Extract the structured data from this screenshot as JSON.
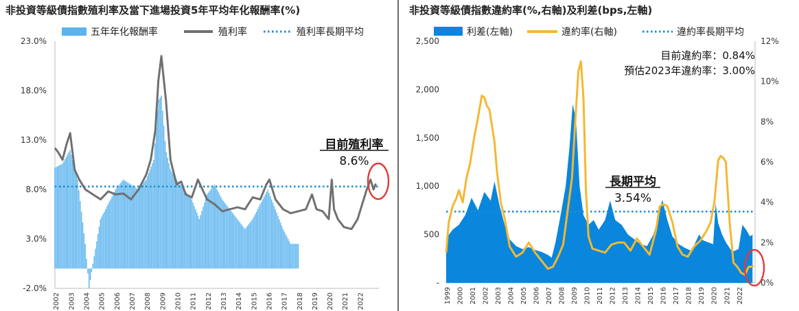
{
  "panel1": {
    "title": "非投資等級債指數殖利率及當下進場投資5年平均年化報酬率(%)",
    "legend": [
      "五年年化報酬率",
      "殖利率",
      "殖利率長期平均"
    ],
    "annotation_label": "目前殖利率",
    "annotation_value": "8.6%",
    "colors": {
      "bar": "#5bb4ee",
      "yield": "#707070",
      "avg": "#1a8fd6",
      "circle": "#e23b3b"
    }
  },
  "panel2": {
    "title": "非投資等級債指數違約率(%,右軸)及利差(bps,左軸)",
    "legend": [
      "利差(左軸)",
      "違約率(右軸)",
      "違約率長期平均"
    ],
    "note_current": "目前違約率：0.84%",
    "note_forecast": "預估2023年違約率：3.00%",
    "annotation_label": "長期平均",
    "annotation_value": "3.54%",
    "colors": {
      "spread": "#0a86dc",
      "default": "#f5b731",
      "avg": "#1a8fd6",
      "circle": "#e23b3b"
    }
  },
  "chart_data": [
    {
      "type": "bar",
      "title": "非投資等級債指數殖利率及當下進場投資5年平均年化報酬率(%)",
      "x_tick_labels": [
        "2002",
        "2003",
        "2004",
        "2005",
        "2006",
        "2007",
        "2008",
        "2009",
        "2010",
        "2011",
        "2012",
        "2013",
        "2014",
        "2015",
        "2016",
        "2017",
        "2018",
        "2019",
        "2020",
        "2021",
        "2022"
      ],
      "y_tick_labels": [
        "23.0%",
        "18.0%",
        "13.0%",
        "8.0%",
        "3.0%",
        "-2.0%"
      ],
      "ylim": [
        -2,
        23
      ],
      "series": [
        {
          "name": "五年年化報酬率",
          "type": "bar",
          "x": [
            2002.0,
            2002.5,
            2003.0,
            2003.5,
            2004.0,
            2004.25,
            2004.5,
            2005.0,
            2005.5,
            2006.0,
            2006.5,
            2007.0,
            2007.5,
            2008.0,
            2008.5,
            2008.8,
            2009.0,
            2009.3,
            2009.6,
            2010.0,
            2010.5,
            2011.0,
            2011.5,
            2012.0,
            2012.5,
            2013.0,
            2013.5,
            2014.0,
            2014.5,
            2015.0,
            2015.5,
            2016.0,
            2016.5,
            2017.0,
            2017.5,
            2018.0
          ],
          "values": [
            10.2,
            10.6,
            12.0,
            9.0,
            2.5,
            -2.0,
            0.5,
            5.0,
            6.5,
            8.0,
            9.0,
            8.5,
            8.0,
            9.0,
            11.0,
            17.0,
            17.5,
            12.0,
            10.0,
            9.0,
            8.0,
            7.0,
            5.0,
            7.5,
            8.5,
            7.0,
            6.0,
            5.0,
            4.0,
            5.0,
            6.5,
            8.0,
            6.0,
            4.0,
            2.5,
            2.5
          ]
        },
        {
          "name": "殖利率",
          "type": "line",
          "x": [
            2002.0,
            2002.2,
            2002.5,
            2002.75,
            2003.0,
            2003.3,
            2003.6,
            2004.0,
            2004.5,
            2005.0,
            2005.5,
            2006.0,
            2006.5,
            2007.0,
            2007.5,
            2008.0,
            2008.3,
            2008.6,
            2008.8,
            2009.0,
            2009.1,
            2009.3,
            2009.6,
            2010.0,
            2010.3,
            2010.6,
            2011.0,
            2011.4,
            2011.7,
            2012.0,
            2012.5,
            2013.0,
            2013.5,
            2014.0,
            2014.5,
            2015.0,
            2015.5,
            2015.9,
            2016.1,
            2016.5,
            2017.0,
            2017.5,
            2018.0,
            2018.5,
            2018.9,
            2019.2,
            2019.6,
            2020.0,
            2020.2,
            2020.35,
            2020.6,
            2021.0,
            2021.5,
            2021.9,
            2022.2,
            2022.5,
            2022.75,
            2022.95,
            2023.1
          ],
          "values": [
            12.2,
            11.8,
            11.0,
            12.5,
            13.7,
            10.0,
            9.0,
            8.0,
            7.5,
            7.0,
            7.8,
            7.5,
            7.6,
            7.0,
            8.0,
            9.5,
            11.0,
            14.0,
            19.0,
            21.5,
            20.0,
            17.0,
            11.0,
            8.5,
            8.8,
            7.5,
            7.2,
            9.0,
            8.0,
            7.0,
            6.5,
            5.8,
            6.0,
            6.2,
            6.0,
            7.2,
            7.0,
            8.5,
            9.0,
            7.0,
            6.0,
            5.6,
            5.8,
            6.0,
            7.5,
            6.0,
            5.8,
            5.0,
            9.0,
            6.0,
            5.0,
            4.2,
            4.0,
            5.0,
            6.5,
            8.0,
            9.0,
            8.0,
            8.6
          ]
        },
        {
          "name": "殖利率長期平均",
          "type": "line",
          "values": [
            8.3
          ]
        }
      ]
    },
    {
      "type": "area",
      "title": "非投資等級債指數違約率(%,右軸)及利差(bps,左軸)",
      "x_tick_labels": [
        "1999",
        "2000",
        "2001",
        "2002",
        "2003",
        "2004",
        "2005",
        "2006",
        "2007",
        "2008",
        "2009",
        "2010",
        "2011",
        "2012",
        "2013",
        "2014",
        "2015",
        "2016",
        "2017",
        "2018",
        "2019",
        "2020",
        "2021",
        "2022"
      ],
      "y_left_tick_labels": [
        "2,500",
        "2,000",
        "1,500",
        "1,000",
        "500",
        "-"
      ],
      "y_right_tick_labels": [
        "12%",
        "10%",
        "8%",
        "6%",
        "4%",
        "2%",
        "0%"
      ],
      "ylim_left": [
        0,
        2500
      ],
      "ylim_right": [
        0,
        12
      ],
      "series": [
        {
          "name": "利差(左軸)",
          "type": "area",
          "axis": "left",
          "x": [
            1999.0,
            1999.5,
            2000.0,
            2000.5,
            2001.0,
            2001.5,
            2002.0,
            2002.5,
            2002.8,
            2003.2,
            2003.6,
            2004.0,
            2004.5,
            2005.0,
            2005.5,
            2006.0,
            2006.5,
            2007.0,
            2007.3,
            2007.6,
            2008.0,
            2008.4,
            2008.7,
            2008.95,
            2009.2,
            2009.5,
            2009.8,
            2010.2,
            2010.6,
            2011.0,
            2011.5,
            2011.9,
            2012.3,
            2012.8,
            2013.3,
            2013.8,
            2014.3,
            2014.8,
            2015.3,
            2015.7,
            2016.0,
            2016.4,
            2016.8,
            2017.3,
            2017.8,
            2018.3,
            2018.9,
            2019.2,
            2019.6,
            2020.0,
            2020.2,
            2020.4,
            2020.7,
            2021.0,
            2021.5,
            2022.0,
            2022.3,
            2022.6,
            2022.9,
            2023.1
          ],
          "values": [
            460,
            550,
            600,
            700,
            880,
            750,
            940,
            850,
            1050,
            800,
            600,
            450,
            380,
            350,
            370,
            340,
            320,
            290,
            260,
            420,
            700,
            1000,
            1400,
            1850,
            1700,
            1000,
            700,
            600,
            650,
            550,
            650,
            850,
            650,
            600,
            500,
            450,
            400,
            380,
            500,
            680,
            860,
            650,
            480,
            400,
            360,
            330,
            500,
            440,
            420,
            400,
            820,
            620,
            500,
            420,
            320,
            350,
            600,
            550,
            480,
            500
          ]
        },
        {
          "name": "違約率(右軸)",
          "type": "line",
          "axis": "right",
          "x": [
            1999.0,
            1999.2,
            1999.5,
            1999.8,
            2000.0,
            2000.3,
            2000.6,
            2000.9,
            2001.2,
            2001.5,
            2001.8,
            2002.0,
            2002.2,
            2002.4,
            2002.6,
            2002.8,
            2003.0,
            2003.3,
            2003.6,
            2004.0,
            2004.5,
            2005.0,
            2005.5,
            2006.0,
            2006.5,
            2007.0,
            2007.4,
            2007.8,
            2008.2,
            2008.6,
            2008.9,
            2009.2,
            2009.4,
            2009.6,
            2009.8,
            2010.0,
            2010.2,
            2010.5,
            2011.0,
            2011.5,
            2012.0,
            2012.5,
            2013.0,
            2013.5,
            2014.0,
            2014.5,
            2015.0,
            2015.5,
            2015.8,
            2016.1,
            2016.4,
            2016.8,
            2017.2,
            2017.6,
            2018.0,
            2018.5,
            2019.0,
            2019.5,
            2019.8,
            2020.1,
            2020.4,
            2020.6,
            2020.8,
            2021.0,
            2021.3,
            2021.6,
            2021.9,
            2022.2,
            2022.5,
            2022.8,
            2023.0,
            2023.2
          ],
          "values": [
            1.5,
            3.0,
            3.8,
            4.2,
            4.6,
            4.0,
            5.2,
            6.0,
            7.2,
            8.2,
            9.3,
            9.2,
            8.8,
            8.6,
            7.8,
            7.0,
            5.5,
            4.0,
            3.2,
            1.8,
            1.3,
            1.5,
            2.0,
            1.5,
            1.1,
            0.7,
            0.8,
            1.3,
            1.9,
            3.8,
            5.2,
            8.5,
            10.5,
            11.0,
            9.2,
            4.5,
            2.3,
            1.7,
            1.6,
            1.5,
            1.9,
            2.0,
            2.0,
            1.6,
            2.2,
            1.8,
            1.4,
            2.6,
            3.8,
            3.9,
            3.8,
            3.0,
            1.8,
            1.4,
            1.3,
            1.8,
            2.1,
            2.6,
            3.0,
            4.0,
            6.1,
            6.3,
            6.2,
            6.0,
            3.0,
            1.0,
            0.8,
            0.5,
            0.4,
            0.8,
            0.8,
            0.84
          ]
        },
        {
          "name": "違約率長期平均",
          "type": "line",
          "axis": "right",
          "values": [
            3.54
          ]
        }
      ]
    }
  ]
}
